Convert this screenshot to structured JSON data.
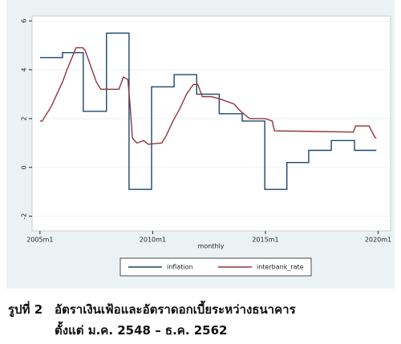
{
  "chart_data": {
    "type": "line",
    "x_label": "monthly",
    "xlim": [
      2004.65,
      2020.55
    ],
    "xticks": [
      {
        "value": 2005,
        "label": "2005m1"
      },
      {
        "value": 2010,
        "label": "2010m1"
      },
      {
        "value": 2015,
        "label": "2015m1"
      },
      {
        "value": 2020,
        "label": "2020m1"
      }
    ],
    "ylim": [
      -2.6,
      6.2
    ],
    "yticks": [
      -2,
      0,
      2,
      4,
      6
    ],
    "grid": true,
    "legend_position": "bottom",
    "series": [
      {
        "name": "inflation",
        "color": "#1a476f",
        "x": [
          2005,
          2006,
          2006,
          2006.92,
          2006.92,
          2007.95,
          2007.95,
          2008.95,
          2008.95,
          2009.95,
          2009.95,
          2010.95,
          2010.95,
          2011.95,
          2011.95,
          2012.95,
          2012.95,
          2013.97,
          2013.97,
          2014.97,
          2014.97,
          2015.95,
          2015.95,
          2016.92,
          2016.92,
          2017.92,
          2017.92,
          2018.95,
          2018.95,
          2019.92
        ],
        "values": [
          4.5,
          4.5,
          4.7,
          4.7,
          2.3,
          2.3,
          5.5,
          5.5,
          -0.9,
          -0.9,
          3.3,
          3.3,
          3.8,
          3.8,
          3.0,
          3.0,
          2.2,
          2.2,
          1.9,
          1.9,
          -0.9,
          -0.9,
          0.2,
          0.2,
          0.7,
          0.7,
          1.1,
          1.1,
          0.7,
          0.7
        ]
      },
      {
        "name": "interbank_rate",
        "color": "#90353b",
        "x": [
          2005,
          2005.1,
          2005.5,
          2006,
          2006.2,
          2006.6,
          2006.9,
          2007.0,
          2007.5,
          2007.7,
          2008.5,
          2008.7,
          2008.9,
          2009.0,
          2009.1,
          2009.3,
          2009.6,
          2009.8,
          2010.4,
          2010.6,
          2010.9,
          2011.2,
          2011.5,
          2011.8,
          2012.0,
          2012.2,
          2012.6,
          2013.0,
          2013.6,
          2013.9,
          2014.3,
          2015.0,
          2015.3,
          2015.4,
          2018.9,
          2019.0,
          2019.6,
          2019.7,
          2019.85,
          2019.92
        ],
        "values": [
          1.9,
          1.9,
          2.5,
          3.5,
          4.0,
          4.9,
          4.9,
          4.8,
          3.5,
          3.2,
          3.2,
          3.7,
          3.6,
          2.5,
          1.2,
          1.0,
          1.1,
          0.95,
          1.0,
          1.3,
          1.9,
          2.4,
          3.0,
          3.4,
          3.4,
          2.9,
          2.9,
          2.8,
          2.6,
          2.3,
          2.0,
          2.0,
          1.9,
          1.5,
          1.45,
          1.7,
          1.7,
          1.5,
          1.25,
          1.2
        ]
      }
    ]
  },
  "figure_caption": {
    "label": "รูปที่ 2",
    "lines": [
      "อัตราเงินเฟ้อและอัตราดอกเบี้ยระหว่างธนาคาร",
      "ตั้งแต่ ม.ค. 2548 – ธ.ค. 2562"
    ]
  }
}
